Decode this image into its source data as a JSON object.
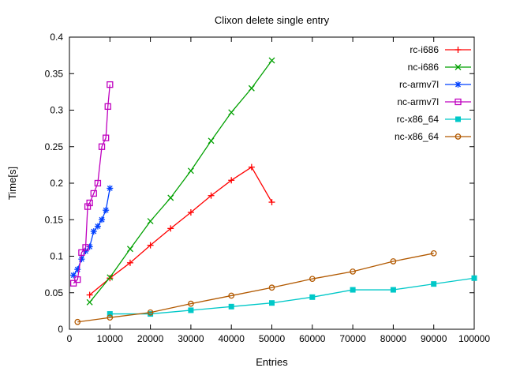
{
  "chart_data": {
    "type": "line",
    "title": "Clixon delete single entry",
    "xlabel": "Entries",
    "ylabel": "Time[s]",
    "xlim": [
      0,
      100000
    ],
    "ylim": [
      0,
      0.4
    ],
    "x_ticks": [
      0,
      10000,
      20000,
      30000,
      40000,
      50000,
      60000,
      70000,
      80000,
      90000,
      100000
    ],
    "y_ticks": [
      0,
      0.05,
      0.1,
      0.15,
      0.2,
      0.25,
      0.3,
      0.35,
      0.4
    ],
    "grid": false,
    "legend_position": "top-right-inside",
    "background_color": "#ffffff",
    "axis_color": "#000000",
    "series": [
      {
        "name": "rc-i686",
        "color": "#ff0000",
        "marker": "plus",
        "x": [
          5000,
          10000,
          15000,
          20000,
          25000,
          30000,
          35000,
          40000,
          45000,
          50000
        ],
        "y": [
          0.047,
          0.07,
          0.091,
          0.115,
          0.138,
          0.16,
          0.183,
          0.204,
          0.222,
          0.174
        ]
      },
      {
        "name": "nc-i686",
        "color": "#00a000",
        "marker": "cross",
        "x": [
          5000,
          10000,
          15000,
          20000,
          25000,
          30000,
          35000,
          40000,
          45000,
          50000
        ],
        "y": [
          0.037,
          0.071,
          0.11,
          0.148,
          0.18,
          0.217,
          0.258,
          0.297,
          0.33,
          0.368
        ]
      },
      {
        "name": "rc-armv7l",
        "color": "#0040ff",
        "marker": "asterisk",
        "x": [
          1000,
          2000,
          3000,
          4000,
          5000,
          6000,
          7000,
          8000,
          9000,
          10000
        ],
        "y": [
          0.074,
          0.082,
          0.096,
          0.107,
          0.113,
          0.134,
          0.141,
          0.15,
          0.163,
          0.193
        ]
      },
      {
        "name": "nc-armv7l",
        "color": "#bf00bf",
        "marker": "square-open",
        "x": [
          1000,
          2000,
          3000,
          4000,
          4500,
          5000,
          6000,
          7000,
          8000,
          9000,
          9500,
          10000
        ],
        "y": [
          0.063,
          0.068,
          0.105,
          0.112,
          0.168,
          0.173,
          0.186,
          0.2,
          0.25,
          0.262,
          0.305,
          0.335
        ]
      },
      {
        "name": "rc-x86_64",
        "color": "#00c8c8",
        "marker": "square-filled",
        "x": [
          10000,
          20000,
          30000,
          40000,
          50000,
          60000,
          70000,
          80000,
          90000,
          100000
        ],
        "y": [
          0.021,
          0.021,
          0.026,
          0.031,
          0.036,
          0.044,
          0.054,
          0.054,
          0.062,
          0.07
        ]
      },
      {
        "name": "nc-x86_64",
        "color": "#b25900",
        "marker": "circle-open",
        "x": [
          2000,
          10000,
          20000,
          30000,
          40000,
          50000,
          60000,
          70000,
          80000,
          90000
        ],
        "y": [
          0.01,
          0.016,
          0.023,
          0.035,
          0.046,
          0.057,
          0.069,
          0.079,
          0.093,
          0.104
        ]
      }
    ]
  }
}
